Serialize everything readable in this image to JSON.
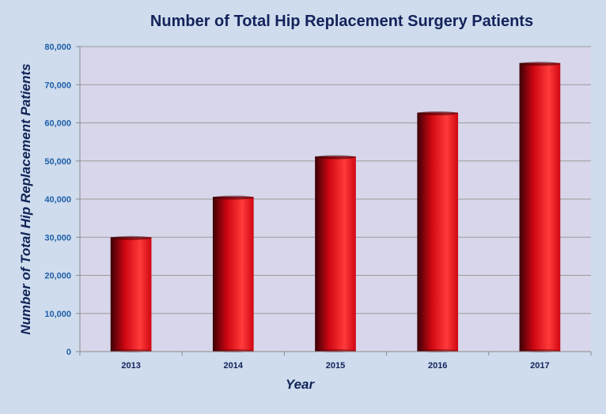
{
  "chart_data": {
    "type": "bar",
    "title": "Number of Total Hip Replacement Surgery Patients",
    "xlabel": "Year",
    "ylabel_parts": [
      "Number of Total ",
      "Hip",
      " Replacement Patients"
    ],
    "categories": [
      "2013",
      "2014",
      "2015",
      "2016",
      "2017"
    ],
    "values": [
      30000,
      40600,
      51200,
      62700,
      75700
    ],
    "ylim": [
      0,
      80000
    ],
    "yticks": [
      0,
      10000,
      20000,
      30000,
      40000,
      50000,
      60000,
      70000,
      80000
    ],
    "ytick_labels": [
      "0",
      "10,000",
      "20,000",
      "30,000",
      "40,000",
      "50,000",
      "60,000",
      "70,000",
      "80,000"
    ],
    "grid": true,
    "legend": "none"
  },
  "colors": {
    "page_background": "#cfdcee",
    "plot_background": "#d8d6ea",
    "bar_dark": "#3a0006",
    "bar_mid": "#cf0712",
    "bar_highlight": "#ff3a3a",
    "title_text": "#13235a",
    "tick_text": "#1f5fa8",
    "axis_title_text": "#0f2356",
    "grid_line": "#9a9a9a"
  }
}
